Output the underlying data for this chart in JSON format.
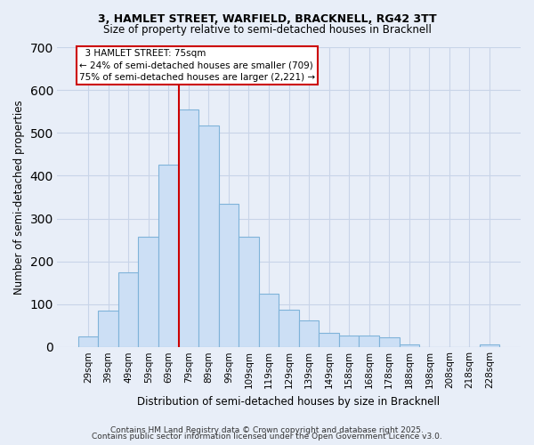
{
  "title_line1": "3, HAMLET STREET, WARFIELD, BRACKNELL, RG42 3TT",
  "title_line2": "Size of property relative to semi-detached houses in Bracknell",
  "bar_labels": [
    "29sqm",
    "39sqm",
    "49sqm",
    "59sqm",
    "69sqm",
    "79sqm",
    "89sqm",
    "99sqm",
    "109sqm",
    "119sqm",
    "129sqm",
    "139sqm",
    "149sqm",
    "158sqm",
    "168sqm",
    "178sqm",
    "188sqm",
    "198sqm",
    "208sqm",
    "218sqm",
    "228sqm"
  ],
  "bar_values": [
    25,
    85,
    175,
    258,
    425,
    555,
    518,
    335,
    258,
    125,
    88,
    62,
    33,
    27,
    27,
    22,
    7,
    0,
    0,
    0,
    5
  ],
  "bar_color": "#ccdff5",
  "bar_edge_color": "#7fb3d9",
  "ylabel": "Number of semi-detached properties",
  "xlabel": "Distribution of semi-detached houses by size in Bracknell",
  "ylim": [
    0,
    700
  ],
  "yticks": [
    0,
    100,
    200,
    300,
    400,
    500,
    600,
    700
  ],
  "property_label": "3 HAMLET STREET: 75sqm",
  "pct_smaller": 24,
  "pct_larger": 75,
  "count_smaller": 709,
  "count_larger": 2221,
  "vline_color": "#cc0000",
  "annotation_box_color": "#ffffff",
  "annotation_box_edge": "#cc0000",
  "footer_line1": "Contains HM Land Registry data © Crown copyright and database right 2025.",
  "footer_line2": "Contains public sector information licensed under the Open Government Licence v3.0.",
  "background_color": "#e8eef8",
  "grid_color": "#c8d4e8"
}
